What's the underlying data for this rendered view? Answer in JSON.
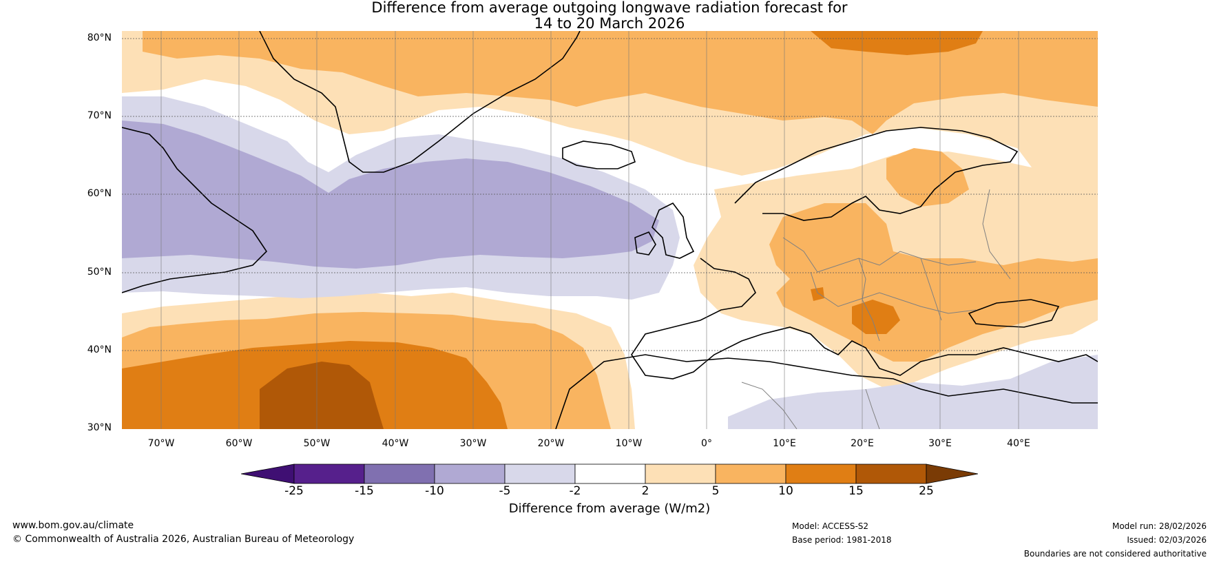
{
  "title": {
    "line1": "Difference from average outgoing longwave radiation forecast for",
    "line2": "14 to 20 March 2026"
  },
  "map": {
    "lat_labels": [
      "80°N",
      "70°N",
      "60°N",
      "50°N",
      "40°N",
      "30°N"
    ],
    "lon_labels": [
      "70°W",
      "60°W",
      "50°W",
      "40°W",
      "30°W",
      "20°W",
      "10°W",
      "0°",
      "10°E",
      "20°E",
      "30°E",
      "40°E"
    ],
    "colors": {
      "ocean_land_default": "#ffffff",
      "purple_light": "#d8d8ea",
      "purple_mid": "#b0a9d3",
      "orange_light": "#fde0b6",
      "orange_mid": "#f9b460",
      "orange_dark": "#e07e14",
      "brown": "#b05807",
      "coast": "#000000",
      "border": "#808080"
    }
  },
  "colorbar": {
    "ticks": [
      "-25",
      "-15",
      "-10",
      "-5",
      "-2",
      "2",
      "5",
      "10",
      "15",
      "25"
    ],
    "colors": [
      "#3f0f73",
      "#56208c",
      "#8070b0",
      "#b0a9d3",
      "#d8d8ea",
      "#ffffff",
      "#fde0b6",
      "#f9b460",
      "#e07e14",
      "#b05807",
      "#7a3b05"
    ],
    "label": "Difference from average (W/m2)"
  },
  "footer": {
    "website": "www.bom.gov.au/climate",
    "copyright": "© Commonwealth of Australia 2026, Australian Bureau of Meteorology",
    "model": "Model: ACCESS-S2",
    "base_period": "Base period: 1981-2018",
    "model_run": "Model run: 28/02/2026",
    "issued": "Issued: 02/03/2026",
    "disclaimer": "Boundaries are not considered authoritative"
  }
}
